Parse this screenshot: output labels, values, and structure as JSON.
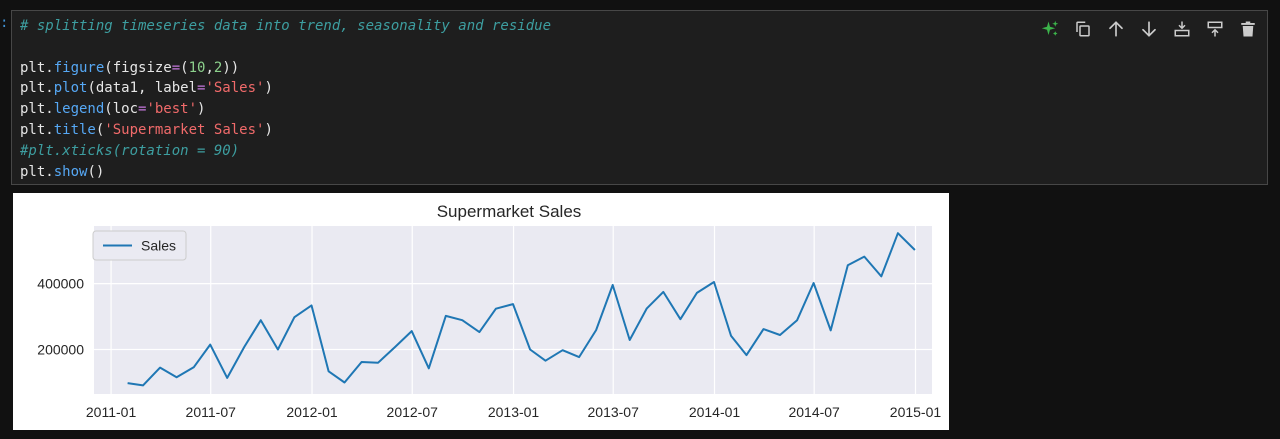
{
  "prompt_marker": ":",
  "toolbar": {
    "icons": [
      "sparkle-icon",
      "copy-icon",
      "arrow-up-icon",
      "arrow-down-icon",
      "insert-above-icon",
      "insert-below-icon",
      "trash-icon"
    ],
    "colors": {
      "sparkle": "#3cb44b",
      "default": "#cccccc"
    }
  },
  "code": {
    "lines": [
      [
        {
          "t": "# splitting timeseries data into trend, seasonality and residue",
          "c": "comment"
        }
      ],
      [],
      [
        {
          "t": "plt.",
          "c": "plain"
        },
        {
          "t": "figure",
          "c": "fn"
        },
        {
          "t": "(figsize",
          "c": "plain"
        },
        {
          "t": "=",
          "c": "op"
        },
        {
          "t": "(",
          "c": "plain"
        },
        {
          "t": "10",
          "c": "num"
        },
        {
          "t": ",",
          "c": "plain"
        },
        {
          "t": "2",
          "c": "num"
        },
        {
          "t": "))",
          "c": "plain"
        }
      ],
      [
        {
          "t": "plt.",
          "c": "plain"
        },
        {
          "t": "plot",
          "c": "fn"
        },
        {
          "t": "(data1, label",
          "c": "plain"
        },
        {
          "t": "=",
          "c": "op"
        },
        {
          "t": "'Sales'",
          "c": "str"
        },
        {
          "t": ")",
          "c": "plain"
        }
      ],
      [
        {
          "t": "plt.",
          "c": "plain"
        },
        {
          "t": "legend",
          "c": "fn"
        },
        {
          "t": "(loc",
          "c": "plain"
        },
        {
          "t": "=",
          "c": "op"
        },
        {
          "t": "'best'",
          "c": "str"
        },
        {
          "t": ")",
          "c": "plain"
        }
      ],
      [
        {
          "t": "plt.",
          "c": "plain"
        },
        {
          "t": "title",
          "c": "fn"
        },
        {
          "t": "(",
          "c": "plain"
        },
        {
          "t": "'Supermarket Sales'",
          "c": "str"
        },
        {
          "t": ")",
          "c": "plain"
        }
      ],
      [
        {
          "t": "#plt.xticks(rotation = 90)",
          "c": "comment"
        }
      ],
      [
        {
          "t": "plt.",
          "c": "plain"
        },
        {
          "t": "show",
          "c": "fn"
        },
        {
          "t": "()",
          "c": "plain"
        }
      ]
    ]
  },
  "chart_data": {
    "type": "line",
    "title": "Supermarket Sales",
    "xlabel": "",
    "ylabel": "",
    "legend": {
      "entries": [
        "Sales"
      ],
      "placement": "top-left"
    },
    "grid": true,
    "x_tick_labels": [
      "2011-01",
      "2011-07",
      "2012-01",
      "2012-07",
      "2013-01",
      "2013-07",
      "2014-01",
      "2014-07",
      "2015-01"
    ],
    "y_tick_labels": [
      "200000",
      "400000"
    ],
    "y_ticks": [
      200000,
      400000
    ],
    "ylim": [
      65000,
      575000
    ],
    "xlim": [
      "2010-12-01",
      "2015-01-31"
    ],
    "line_color": "#1f77b4",
    "plot_background": "#eaeaf2",
    "series": [
      {
        "name": "Sales",
        "x": [
          "2011-01-31",
          "2011-02-28",
          "2011-03-31",
          "2011-04-30",
          "2011-05-31",
          "2011-06-30",
          "2011-07-31",
          "2011-08-31",
          "2011-09-30",
          "2011-10-31",
          "2011-11-30",
          "2011-12-31",
          "2012-01-31",
          "2012-02-29",
          "2012-03-31",
          "2012-04-30",
          "2012-05-31",
          "2012-06-30",
          "2012-07-31",
          "2012-08-31",
          "2012-09-30",
          "2012-10-31",
          "2012-11-30",
          "2012-12-31",
          "2013-01-31",
          "2013-02-28",
          "2013-03-31",
          "2013-04-30",
          "2013-05-31",
          "2013-06-30",
          "2013-07-31",
          "2013-08-31",
          "2013-09-30",
          "2013-10-31",
          "2013-11-30",
          "2013-12-31",
          "2014-01-31",
          "2014-02-28",
          "2014-03-31",
          "2014-04-30",
          "2014-05-31",
          "2014-06-30",
          "2014-07-31",
          "2014-08-31",
          "2014-09-30",
          "2014-10-31",
          "2014-11-30",
          "2014-12-31"
        ],
        "y": [
          98000,
          91000,
          145000,
          116000,
          146000,
          215000,
          114000,
          208000,
          289000,
          200000,
          298000,
          334000,
          134000,
          100000,
          162000,
          160000,
          208000,
          256000,
          143000,
          302000,
          289000,
          253000,
          324000,
          338000,
          200000,
          166000,
          198000,
          177000,
          259000,
          396000,
          229000,
          325000,
          375000,
          292000,
          372000,
          405000,
          242000,
          183000,
          262000,
          244000,
          289000,
          402000,
          258000,
          456000,
          482000,
          422000,
          553000,
          502000
        ]
      }
    ]
  }
}
